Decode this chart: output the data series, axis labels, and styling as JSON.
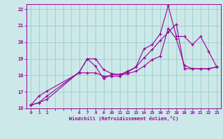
{
  "xlabel": "Windchill (Refroidissement éolien,°C)",
  "background_color": "#cce8e8",
  "grid_color": "#99cccc",
  "line_color": "#990099",
  "xlim": [
    -0.5,
    23.5
  ],
  "ylim": [
    16.0,
    22.3
  ],
  "xtick_positions": [
    0,
    1,
    2,
    6,
    7,
    8,
    9,
    10,
    11,
    12,
    13,
    14,
    15,
    16,
    17,
    18,
    19,
    20,
    21,
    22,
    23
  ],
  "ytick_positions": [
    16,
    17,
    18,
    19,
    20,
    21,
    22
  ],
  "series1_x": [
    0,
    1,
    2,
    6,
    7,
    8,
    9,
    10,
    11,
    12,
    13,
    14,
    15,
    16,
    17,
    18,
    19,
    20,
    21,
    22,
    23
  ],
  "series1_y": [
    16.2,
    16.35,
    16.55,
    18.2,
    19.0,
    18.55,
    17.8,
    18.05,
    18.05,
    18.25,
    18.5,
    19.6,
    19.85,
    20.5,
    22.2,
    20.35,
    20.35,
    19.85,
    20.35,
    19.45,
    18.5
  ],
  "series2_x": [
    0,
    1,
    2,
    6,
    7,
    8,
    9,
    10,
    11,
    12,
    13,
    14,
    15,
    16,
    17,
    18,
    19,
    20,
    21,
    22,
    23
  ],
  "series2_y": [
    16.2,
    16.35,
    16.75,
    18.2,
    19.0,
    19.0,
    18.35,
    18.1,
    18.05,
    18.1,
    18.25,
    18.55,
    18.95,
    19.15,
    20.85,
    20.2,
    18.6,
    18.4,
    18.4,
    18.4,
    18.5
  ],
  "series3_x": [
    0,
    1,
    2,
    6,
    7,
    8,
    9,
    10,
    11,
    12,
    13,
    14,
    15,
    16,
    17,
    18,
    19,
    20,
    21,
    22,
    23
  ],
  "series3_y": [
    16.2,
    16.75,
    17.05,
    18.15,
    18.15,
    18.15,
    17.95,
    17.95,
    17.95,
    18.2,
    18.5,
    19.05,
    19.55,
    20.1,
    20.6,
    21.1,
    18.4,
    18.4,
    18.4,
    18.4,
    18.5
  ]
}
